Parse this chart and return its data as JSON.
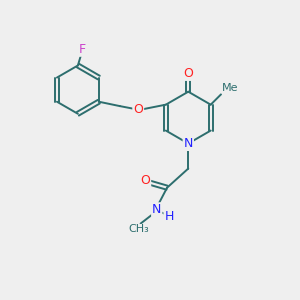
{
  "background_color": "#efefef",
  "bond_color": "#2d6e6e",
  "atom_colors": {
    "F": "#cc44cc",
    "O": "#ff2222",
    "N": "#2222ff",
    "C": "#2d6e6e",
    "H": "#2222ff"
  },
  "figsize": [
    3.0,
    3.0
  ],
  "dpi": 100
}
